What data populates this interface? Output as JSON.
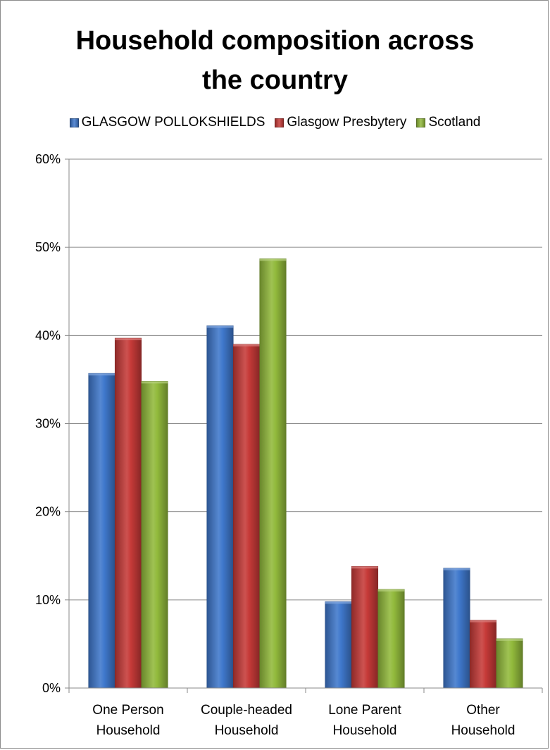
{
  "chart_data": {
    "type": "bar",
    "title": "Household composition across the country",
    "title_lines": [
      "Household composition across",
      "the country"
    ],
    "categories": [
      [
        "One Person",
        "Household"
      ],
      [
        "Couple-headed",
        "Household"
      ],
      [
        "Lone Parent",
        "Household"
      ],
      [
        "Other",
        "Household"
      ]
    ],
    "series": [
      {
        "name": "GLASGOW POLLOKSHIELDS",
        "color": "#3f78cc",
        "values": [
          35.7,
          41.1,
          9.8,
          13.6
        ]
      },
      {
        "name": "Glasgow Presbytery",
        "color": "#c63a38",
        "values": [
          39.7,
          39.0,
          13.8,
          7.7
        ]
      },
      {
        "name": "Scotland",
        "color": "#92ba3c",
        "values": [
          34.8,
          48.7,
          11.2,
          5.6
        ]
      }
    ],
    "ylim": [
      0,
      60
    ],
    "yticks": [
      "0%",
      "10%",
      "20%",
      "30%",
      "40%",
      "50%",
      "60%"
    ],
    "grid": true,
    "legend_position": "top"
  }
}
